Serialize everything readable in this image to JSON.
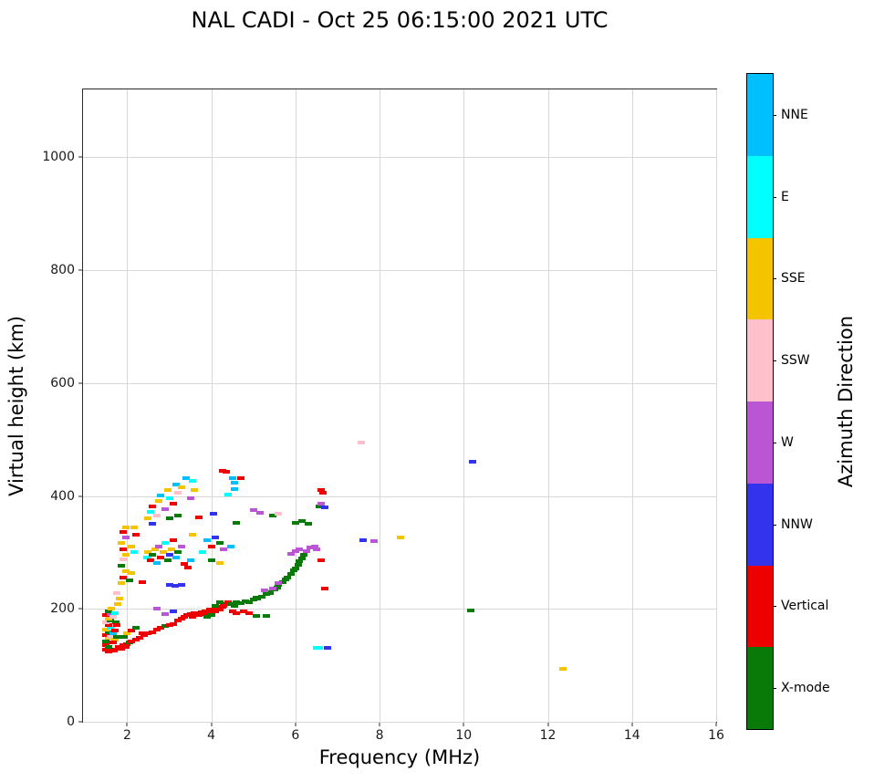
{
  "chart_data": {
    "type": "scatter",
    "title": "NAL CADI - Oct 25 06:15:00 2021 UTC",
    "xlabel": "Frequency (MHz)",
    "ylabel": "Virtual height (km)",
    "xlim": [
      0.95,
      16
    ],
    "ylim": [
      0,
      1120
    ],
    "xticks": [
      2,
      4,
      6,
      8,
      10,
      12,
      14,
      16
    ],
    "yticks": [
      0,
      200,
      400,
      600,
      800,
      1000
    ],
    "grid": true,
    "legend_position": "right-colorbar",
    "colorbar": {
      "label": "Azimuth Direction",
      "categories": [
        {
          "label": "NNE",
          "color": "#00BFFF"
        },
        {
          "label": "E",
          "color": "#00FFFF"
        },
        {
          "label": "SSE",
          "color": "#F5C400"
        },
        {
          "label": "SSW",
          "color": "#FFC0CB"
        },
        {
          "label": "W",
          "color": "#BA55D3"
        },
        {
          "label": "NNW",
          "color": "#3333EE"
        },
        {
          "label": "Vertical",
          "color": "#EE0000"
        },
        {
          "label": "X-mode",
          "color": "#077A07"
        }
      ]
    },
    "points": [
      [
        1.5,
        127,
        "Vertical"
      ],
      [
        1.55,
        125,
        "Vertical"
      ],
      [
        1.62,
        128,
        "Vertical"
      ],
      [
        1.68,
        126,
        "Vertical"
      ],
      [
        1.5,
        136,
        "Vertical"
      ],
      [
        1.56,
        133,
        "X-mode"
      ],
      [
        1.5,
        143,
        "X-mode"
      ],
      [
        1.55,
        148,
        "SSE"
      ],
      [
        1.5,
        153,
        "Vertical"
      ],
      [
        1.6,
        151,
        "SSW"
      ],
      [
        1.56,
        158,
        "X-mode"
      ],
      [
        1.5,
        164,
        "SSE"
      ],
      [
        1.6,
        166,
        "E"
      ],
      [
        1.55,
        171,
        "Vertical"
      ],
      [
        1.5,
        176,
        "SSW"
      ],
      [
        1.6,
        179,
        "X-mode"
      ],
      [
        1.56,
        183,
        "SSE"
      ],
      [
        1.5,
        189,
        "Vertical"
      ],
      [
        1.6,
        191,
        "W"
      ],
      [
        1.55,
        196,
        "X-mode"
      ],
      [
        1.62,
        201,
        "SSE"
      ],
      [
        1.66,
        156,
        "NNE"
      ],
      [
        1.7,
        161,
        "Vertical"
      ],
      [
        1.7,
        146,
        "SSE"
      ],
      [
        1.66,
        186,
        "SSW"
      ],
      [
        1.72,
        176,
        "X-mode"
      ],
      [
        1.76,
        171,
        "Vertical"
      ],
      [
        1.7,
        192,
        "E"
      ],
      [
        1.75,
        151,
        "X-mode"
      ],
      [
        1.66,
        141,
        "Vertical"
      ],
      [
        1.78,
        208,
        "SSE"
      ],
      [
        1.82,
        218,
        "SSE"
      ],
      [
        1.76,
        228,
        "SSW"
      ],
      [
        1.8,
        133,
        "Vertical"
      ],
      [
        1.86,
        130,
        "Vertical"
      ],
      [
        1.9,
        135,
        "Vertical"
      ],
      [
        1.96,
        132,
        "Vertical"
      ],
      [
        2.0,
        138,
        "Vertical"
      ],
      [
        2.06,
        141,
        "X-mode"
      ],
      [
        2.1,
        143,
        "Vertical"
      ],
      [
        2.2,
        146,
        "Vertical"
      ],
      [
        2.3,
        149,
        "Vertical"
      ],
      [
        1.92,
        151,
        "X-mode"
      ],
      [
        2.0,
        156,
        "SSE"
      ],
      [
        2.1,
        161,
        "Vertical"
      ],
      [
        2.2,
        166,
        "X-mode"
      ],
      [
        2.35,
        156,
        "Vertical"
      ],
      [
        1.86,
        246,
        "SSE"
      ],
      [
        1.9,
        256,
        "Vertical"
      ],
      [
        1.96,
        266,
        "SSE"
      ],
      [
        1.86,
        276,
        "X-mode"
      ],
      [
        1.9,
        287,
        "SSW"
      ],
      [
        1.96,
        296,
        "SSE"
      ],
      [
        1.9,
        306,
        "Vertical"
      ],
      [
        1.86,
        316,
        "SSE"
      ],
      [
        1.96,
        326,
        "W"
      ],
      [
        1.9,
        336,
        "Vertical"
      ],
      [
        1.96,
        345,
        "SSE"
      ],
      [
        2.06,
        251,
        "X-mode"
      ],
      [
        2.1,
        263,
        "SSE"
      ],
      [
        2.16,
        301,
        "E"
      ],
      [
        2.1,
        311,
        "SSE"
      ],
      [
        2.2,
        331,
        "Vertical"
      ],
      [
        2.16,
        344,
        "SSE"
      ],
      [
        2.46,
        291,
        "E"
      ],
      [
        2.5,
        301,
        "SSE"
      ],
      [
        2.56,
        286,
        "Vertical"
      ],
      [
        2.6,
        296,
        "X-mode"
      ],
      [
        2.66,
        306,
        "SSE"
      ],
      [
        2.7,
        281,
        "NNE"
      ],
      [
        2.76,
        311,
        "W"
      ],
      [
        2.8,
        291,
        "Vertical"
      ],
      [
        2.86,
        301,
        "SSE"
      ],
      [
        2.9,
        316,
        "E"
      ],
      [
        2.96,
        286,
        "X-mode"
      ],
      [
        3.0,
        296,
        "NNW"
      ],
      [
        3.06,
        306,
        "SSE"
      ],
      [
        3.1,
        321,
        "Vertical"
      ],
      [
        3.16,
        291,
        "NNE"
      ],
      [
        3.2,
        301,
        "X-mode"
      ],
      [
        3.3,
        311,
        "W"
      ],
      [
        3.36,
        279,
        "Vertical"
      ],
      [
        3.44,
        273,
        "Vertical"
      ],
      [
        3.5,
        286,
        "NNE"
      ],
      [
        3.56,
        331,
        "SSE"
      ],
      [
        2.5,
        361,
        "SSE"
      ],
      [
        2.56,
        371,
        "E"
      ],
      [
        2.6,
        381,
        "Vertical"
      ],
      [
        2.7,
        366,
        "SSW"
      ],
      [
        2.76,
        391,
        "SSE"
      ],
      [
        2.8,
        401,
        "NNE"
      ],
      [
        2.9,
        376,
        "W"
      ],
      [
        2.96,
        411,
        "SSE"
      ],
      [
        3.0,
        396,
        "E"
      ],
      [
        3.1,
        386,
        "Vertical"
      ],
      [
        3.16,
        421,
        "NNE"
      ],
      [
        3.2,
        406,
        "SSW"
      ],
      [
        3.3,
        416,
        "SSE"
      ],
      [
        3.4,
        431,
        "NNE"
      ],
      [
        3.5,
        396,
        "W"
      ],
      [
        3.56,
        426,
        "E"
      ],
      [
        3.6,
        411,
        "SSE"
      ],
      [
        2.6,
        351,
        "NNW"
      ],
      [
        3.0,
        361,
        "X-mode"
      ],
      [
        3.2,
        366,
        "X-mode"
      ],
      [
        3.0,
        242,
        "NNW"
      ],
      [
        3.15,
        240,
        "NNW"
      ],
      [
        3.3,
        243,
        "NNW"
      ],
      [
        2.4,
        153,
        "Vertical"
      ],
      [
        2.5,
        156,
        "Vertical"
      ],
      [
        2.6,
        159,
        "Vertical"
      ],
      [
        2.7,
        163,
        "Vertical"
      ],
      [
        2.8,
        166,
        "Vertical"
      ],
      [
        2.9,
        169,
        "X-mode"
      ],
      [
        3.0,
        171,
        "Vertical"
      ],
      [
        3.1,
        173,
        "Vertical"
      ],
      [
        3.2,
        179,
        "Vertical"
      ],
      [
        3.3,
        183,
        "Vertical"
      ],
      [
        3.36,
        186,
        "Vertical"
      ],
      [
        3.42,
        189,
        "Vertical"
      ],
      [
        3.5,
        191,
        "Vertical"
      ],
      [
        3.56,
        186,
        "Vertical"
      ],
      [
        3.6,
        193,
        "Vertical"
      ],
      [
        3.7,
        189,
        "Vertical"
      ],
      [
        3.76,
        194,
        "Vertical"
      ],
      [
        3.8,
        191,
        "Vertical"
      ],
      [
        3.86,
        196,
        "Vertical"
      ],
      [
        3.9,
        193,
        "Vertical"
      ],
      [
        3.96,
        198,
        "Vertical"
      ],
      [
        4.0,
        194,
        "Vertical"
      ],
      [
        4.06,
        199,
        "Vertical"
      ],
      [
        4.1,
        196,
        "Vertical"
      ],
      [
        4.16,
        201,
        "Vertical"
      ],
      [
        4.2,
        198,
        "Vertical"
      ],
      [
        4.26,
        203,
        "Vertical"
      ],
      [
        4.3,
        206,
        "Vertical"
      ],
      [
        4.36,
        209,
        "Vertical"
      ],
      [
        4.4,
        211,
        "Vertical"
      ],
      [
        3.9,
        186,
        "X-mode"
      ],
      [
        4.0,
        189,
        "X-mode"
      ],
      [
        4.1,
        206,
        "X-mode"
      ],
      [
        4.2,
        211,
        "X-mode"
      ],
      [
        2.9,
        191,
        "W"
      ],
      [
        3.1,
        196,
        "NNW"
      ],
      [
        2.7,
        201,
        "W"
      ],
      [
        2.35,
        248,
        "Vertical"
      ],
      [
        4.26,
        445,
        "Vertical"
      ],
      [
        4.36,
        443,
        "Vertical"
      ],
      [
        4.5,
        431,
        "NNE"
      ],
      [
        4.56,
        424,
        "NNE"
      ],
      [
        4.7,
        432,
        "Vertical"
      ],
      [
        4.4,
        403,
        "E"
      ],
      [
        4.56,
        412,
        "NNE"
      ],
      [
        3.8,
        301,
        "E"
      ],
      [
        3.9,
        321,
        "NNE"
      ],
      [
        4.0,
        311,
        "Vertical"
      ],
      [
        4.1,
        326,
        "NNW"
      ],
      [
        4.2,
        316,
        "X-mode"
      ],
      [
        4.3,
        306,
        "W"
      ],
      [
        4.0,
        286,
        "X-mode"
      ],
      [
        4.2,
        281,
        "SSE"
      ],
      [
        4.46,
        311,
        "NNE"
      ],
      [
        4.46,
        208,
        "X-mode"
      ],
      [
        4.56,
        205,
        "X-mode"
      ],
      [
        4.6,
        212,
        "X-mode"
      ],
      [
        4.7,
        210,
        "X-mode"
      ],
      [
        4.8,
        214,
        "X-mode"
      ],
      [
        4.9,
        212,
        "X-mode"
      ],
      [
        5.0,
        216,
        "X-mode"
      ],
      [
        5.06,
        220,
        "X-mode"
      ],
      [
        5.1,
        218,
        "X-mode"
      ],
      [
        5.2,
        222,
        "X-mode"
      ],
      [
        5.3,
        226,
        "X-mode"
      ],
      [
        5.36,
        230,
        "X-mode"
      ],
      [
        5.4,
        228,
        "X-mode"
      ],
      [
        5.5,
        234,
        "X-mode"
      ],
      [
        5.56,
        238,
        "X-mode"
      ],
      [
        5.6,
        242,
        "X-mode"
      ],
      [
        5.7,
        248,
        "X-mode"
      ],
      [
        5.76,
        252,
        "X-mode"
      ],
      [
        5.8,
        256,
        "X-mode"
      ],
      [
        5.9,
        262,
        "X-mode"
      ],
      [
        5.96,
        268,
        "X-mode"
      ],
      [
        6.0,
        272,
        "X-mode"
      ],
      [
        6.06,
        278,
        "X-mode"
      ],
      [
        6.1,
        284,
        "X-mode"
      ],
      [
        6.16,
        290,
        "X-mode"
      ],
      [
        6.2,
        296,
        "X-mode"
      ],
      [
        4.5,
        196,
        "Vertical"
      ],
      [
        4.6,
        192,
        "Vertical"
      ],
      [
        4.76,
        195,
        "Vertical"
      ],
      [
        4.9,
        192,
        "Vertical"
      ],
      [
        5.06,
        188,
        "X-mode"
      ],
      [
        5.3,
        187,
        "X-mode"
      ],
      [
        5.26,
        232,
        "W"
      ],
      [
        5.46,
        236,
        "W"
      ],
      [
        5.6,
        246,
        "W"
      ],
      [
        5.9,
        298,
        "W"
      ],
      [
        6.0,
        302,
        "W"
      ],
      [
        6.1,
        306,
        "W"
      ],
      [
        6.26,
        302,
        "W"
      ],
      [
        6.36,
        308,
        "W"
      ],
      [
        6.46,
        310,
        "W"
      ],
      [
        6.5,
        305,
        "W"
      ],
      [
        5.0,
        375,
        "W"
      ],
      [
        5.16,
        370,
        "W"
      ],
      [
        5.46,
        365,
        "X-mode"
      ],
      [
        5.6,
        368,
        "SSW"
      ],
      [
        6.0,
        352,
        "X-mode"
      ],
      [
        6.16,
        355,
        "X-mode"
      ],
      [
        6.3,
        350,
        "X-mode"
      ],
      [
        6.56,
        382,
        "X-mode"
      ],
      [
        6.6,
        386,
        "W"
      ],
      [
        6.66,
        405,
        "Vertical"
      ],
      [
        6.6,
        410,
        "Vertical"
      ],
      [
        6.7,
        380,
        "NNW"
      ],
      [
        4.6,
        352,
        "X-mode"
      ],
      [
        3.7,
        362,
        "Vertical"
      ],
      [
        4.06,
        368,
        "NNW"
      ],
      [
        6.5,
        131,
        "E"
      ],
      [
        6.56,
        131,
        "E"
      ],
      [
        6.76,
        131,
        "NNW"
      ],
      [
        6.7,
        236,
        "Vertical"
      ],
      [
        6.6,
        286,
        "Vertical"
      ],
      [
        7.56,
        495,
        "SSW"
      ],
      [
        7.86,
        320,
        "W"
      ],
      [
        8.5,
        327,
        "SSE"
      ],
      [
        10.2,
        461,
        "NNW"
      ],
      [
        10.16,
        197,
        "X-mode"
      ],
      [
        12.36,
        93,
        "SSE"
      ],
      [
        7.6,
        322,
        "NNW"
      ]
    ]
  }
}
